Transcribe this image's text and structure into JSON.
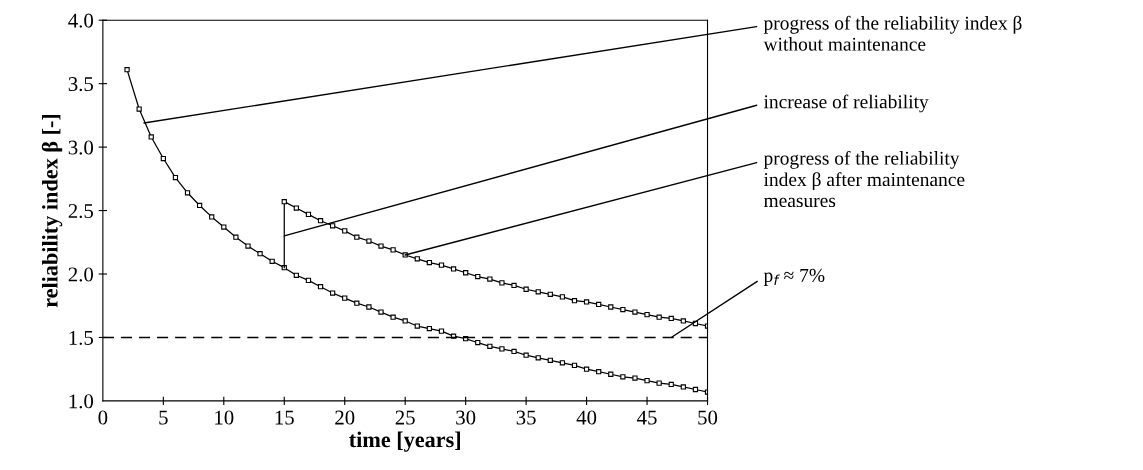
{
  "chart_data": {
    "type": "line",
    "xlabel": "time [years]",
    "ylabel": "reliability index β [-]",
    "xlim": [
      0,
      50
    ],
    "xticks": [
      0,
      5,
      10,
      15,
      20,
      25,
      30,
      35,
      40,
      45,
      50
    ],
    "ylim": [
      1.0,
      4.0
    ],
    "yticks": [
      {
        "value": 1.0,
        "label": "1.0"
      },
      {
        "value": 1.5,
        "label": "1.5"
      },
      {
        "value": 2.0,
        "label": "2.0"
      },
      {
        "value": 2.5,
        "label": "2.5"
      },
      {
        "value": 3.0,
        "label": "3.0"
      },
      {
        "value": 3.5,
        "label": "3.5"
      },
      {
        "value": 4.0,
        "label": "4.0"
      }
    ],
    "grid": false,
    "marker": "square",
    "line_style": "solid",
    "series": [
      {
        "color": "#000000",
        "x": [
          2,
          3,
          4,
          5,
          6,
          7,
          8,
          9,
          10,
          11,
          12,
          13,
          14,
          15,
          16,
          17,
          18,
          19,
          20,
          21,
          22,
          23,
          24,
          25,
          26,
          27,
          28,
          29,
          30,
          31,
          32,
          33,
          34,
          35,
          36,
          37,
          38,
          39,
          40,
          41,
          42,
          43,
          44,
          45,
          46,
          47,
          48,
          49,
          50
        ],
        "values": [
          3.61,
          3.3,
          3.08,
          2.91,
          2.76,
          2.64,
          2.54,
          2.45,
          2.37,
          2.29,
          2.22,
          2.16,
          2.1,
          2.05,
          1.99,
          1.95,
          1.9,
          1.85,
          1.81,
          1.77,
          1.74,
          1.7,
          1.66,
          1.63,
          1.59,
          1.57,
          1.55,
          1.51,
          1.49,
          1.46,
          1.43,
          1.41,
          1.39,
          1.36,
          1.34,
          1.32,
          1.3,
          1.28,
          1.25,
          1.23,
          1.21,
          1.19,
          1.18,
          1.16,
          1.14,
          1.13,
          1.11,
          1.09,
          1.07
        ]
      },
      {
        "color": "#000000",
        "x": [
          15,
          15,
          16,
          17,
          18,
          19,
          20,
          21,
          22,
          23,
          24,
          25,
          26,
          27,
          28,
          29,
          30,
          31,
          32,
          33,
          34,
          35,
          36,
          37,
          38,
          39,
          40,
          41,
          42,
          43,
          44,
          45,
          46,
          47,
          48,
          49,
          50
        ],
        "values": [
          2.05,
          2.57,
          2.52,
          2.47,
          2.42,
          2.38,
          2.34,
          2.29,
          2.26,
          2.22,
          2.19,
          2.15,
          2.12,
          2.09,
          2.07,
          2.04,
          2.01,
          1.98,
          1.96,
          1.93,
          1.91,
          1.88,
          1.86,
          1.84,
          1.82,
          1.79,
          1.78,
          1.76,
          1.74,
          1.72,
          1.7,
          1.68,
          1.66,
          1.65,
          1.63,
          1.61,
          1.59
        ]
      }
    ],
    "ref_lines": [
      {
        "axis": "y",
        "value": 1.5,
        "color": "#000000",
        "line_style": "dashed"
      }
    ],
    "annotations": [
      {
        "text": "progress of the reliability index β\nwithout maintenance",
        "x": 3.4,
        "y": 3.19
      },
      {
        "text": "increase of reliability",
        "x": 15,
        "y": 2.3
      },
      {
        "text": "progress of the reliability\nindex β after maintenance\nmeasures",
        "x": 25,
        "y": 2.15
      },
      {
        "text": "p$_{f}$ ≈ 7%",
        "x": 47,
        "y": 1.5
      }
    ]
  }
}
